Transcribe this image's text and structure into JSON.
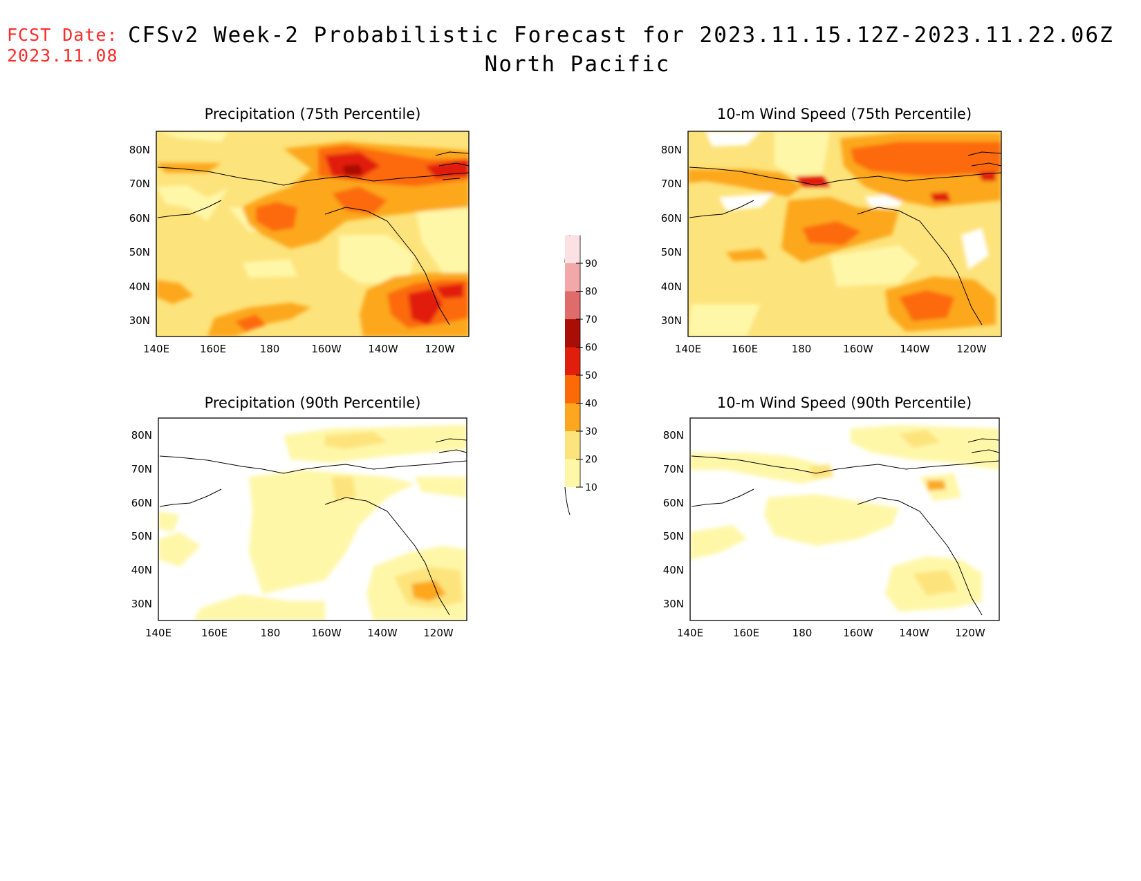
{
  "header": {
    "fcst_label": "FCST Date:",
    "fcst_date": "2023.11.08",
    "title": "CFSv2 Week-2 Probabilistic Forecast for 2023.11.15.12Z-2023.11.22.06Z",
    "subtitle": "North Pacific"
  },
  "axes": {
    "lat_ticks": [
      "30N",
      "40N",
      "50N",
      "60N",
      "70N",
      "80N"
    ],
    "lon_ticks": [
      "140E",
      "160E",
      "180",
      "160W",
      "140W",
      "120W"
    ]
  },
  "panels": [
    {
      "title": "Precipitation (75th Percentile)"
    },
    {
      "title": "10-m Wind Speed (75th Percentile)"
    },
    {
      "title": "Precipitation (90th Percentile)"
    },
    {
      "title": "10-m Wind Speed (90th Percentile)"
    }
  ],
  "colorbar": {
    "levels": [
      "10",
      "20",
      "30",
      "40",
      "50",
      "60",
      "70",
      "80",
      "90"
    ],
    "colors": [
      "#fff7a8",
      "#fde37b",
      "#fca71f",
      "#fc6a08",
      "#e11e0b",
      "#a80d06",
      "#df6b6b",
      "#f2a8a8",
      "#fbe1e4"
    ]
  }
}
